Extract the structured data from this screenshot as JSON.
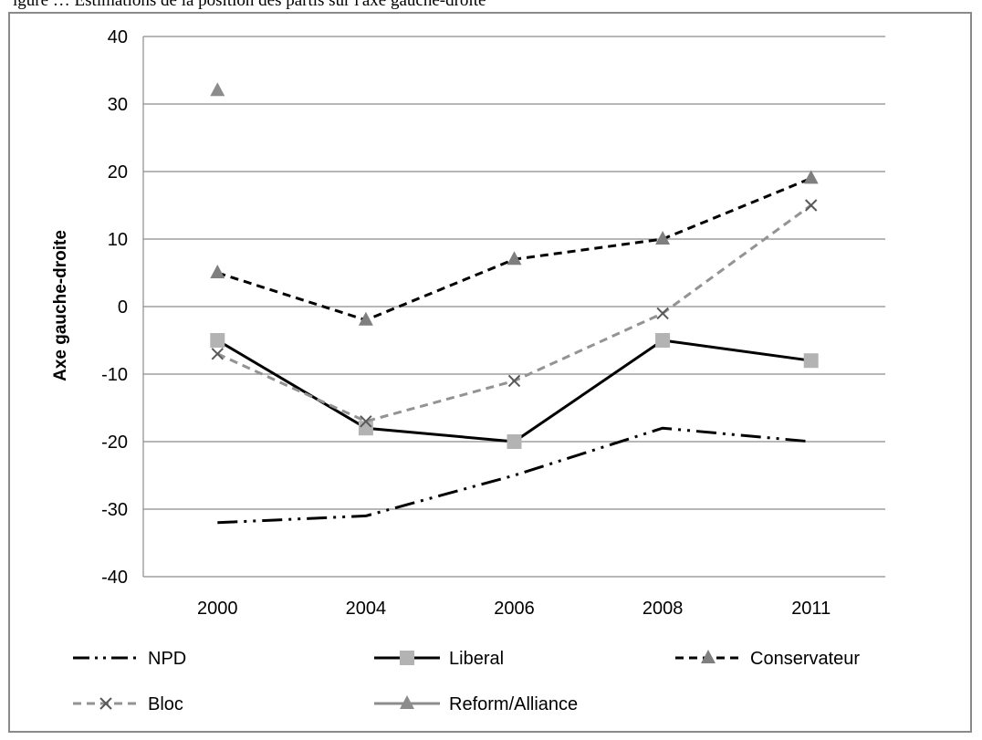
{
  "caption_fragment": "igure … Estimations de la position des partis sur l'axe gauche-droite",
  "chart_data": {
    "type": "line",
    "title": "",
    "xlabel": "",
    "ylabel": "Axe gauche-droite",
    "categories": [
      "2000",
      "2004",
      "2006",
      "2008",
      "2011"
    ],
    "ylim": [
      -40,
      40
    ],
    "yticks": [
      -40,
      -30,
      -20,
      -10,
      0,
      10,
      20,
      30,
      40
    ],
    "grid": true,
    "legend_position": "bottom",
    "series": [
      {
        "name": "NPD",
        "values": [
          -32,
          -31,
          -25,
          -18,
          -20
        ],
        "color": "#000000",
        "dash": "dashdotdot",
        "marker": "none"
      },
      {
        "name": "Liberal",
        "values": [
          -5,
          -18,
          -20,
          -5,
          -8
        ],
        "color": "#000000",
        "dash": "solid",
        "marker": "square",
        "marker_color": "#b3b3b3"
      },
      {
        "name": "Conservateur",
        "values": [
          5,
          -2,
          7,
          10,
          19
        ],
        "color": "#000000",
        "dash": "dashed",
        "marker": "triangle",
        "marker_color": "#7f7f7f"
      },
      {
        "name": "Bloc",
        "values": [
          -7,
          -17,
          -11,
          -1,
          15
        ],
        "color": "#939393",
        "dash": "dashed",
        "marker": "x",
        "marker_color": "#595959"
      },
      {
        "name": "Reform/Alliance",
        "values": [
          32,
          null,
          null,
          null,
          null
        ],
        "color": "#8c8c8c",
        "dash": "solid",
        "marker": "triangle",
        "marker_color": "#8c8c8c"
      }
    ]
  }
}
